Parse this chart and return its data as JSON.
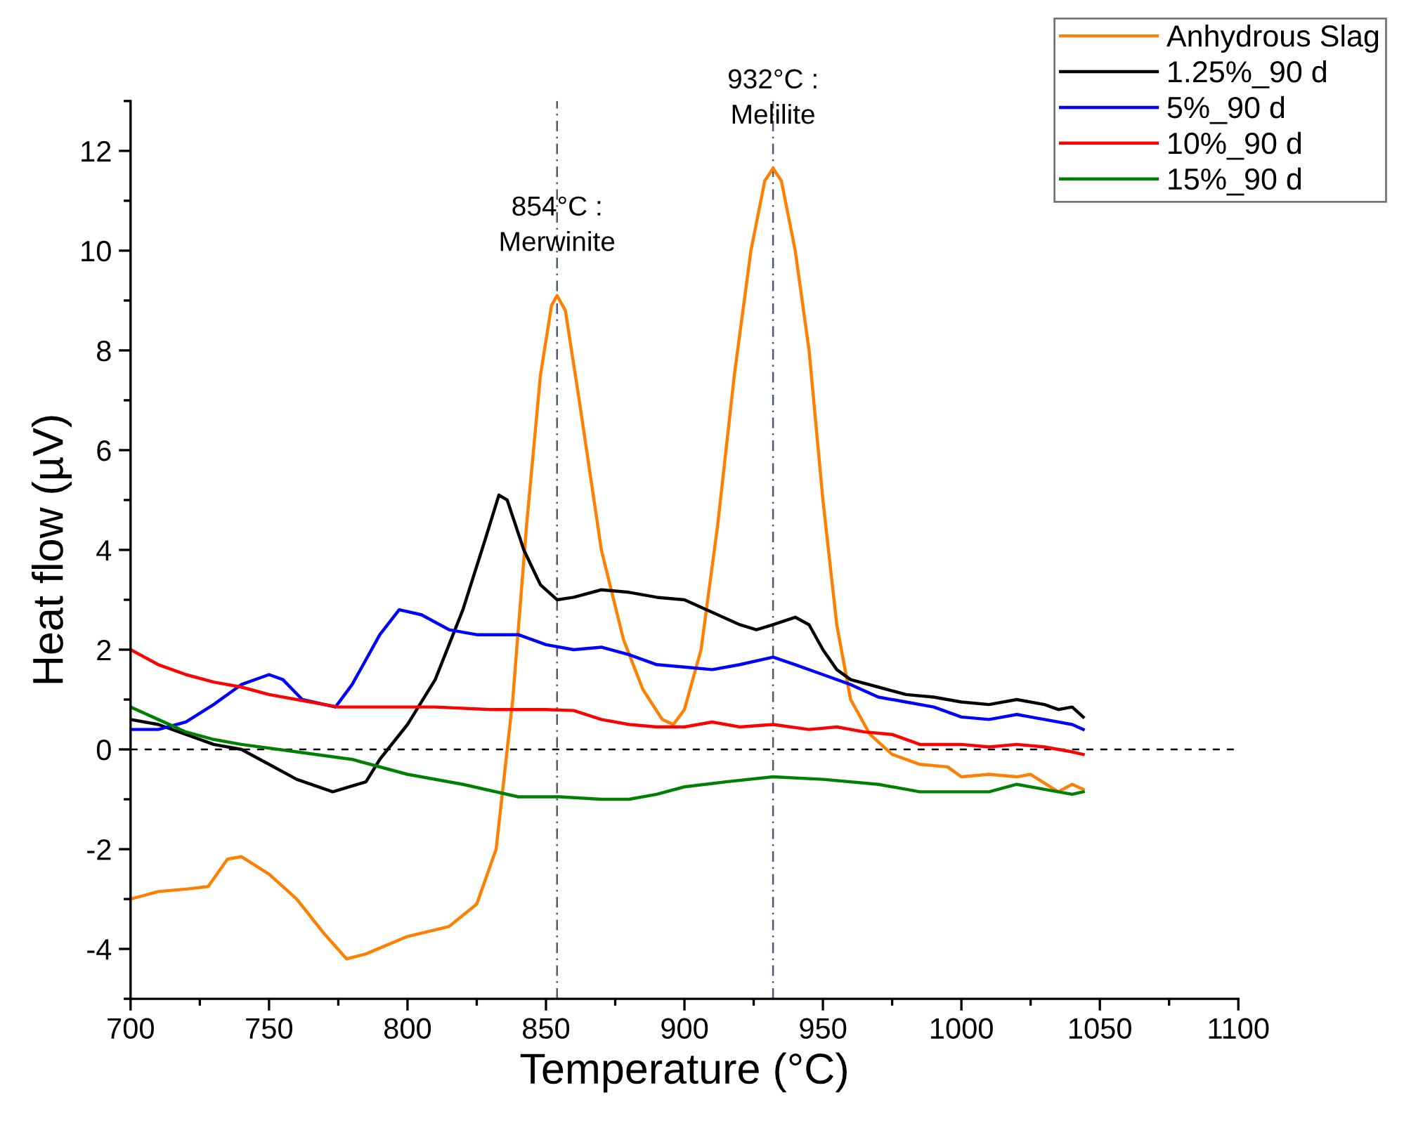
{
  "chart_data": {
    "type": "line",
    "xlabel": "Temperature (°C)",
    "ylabel": "Heat flow (µV)",
    "xlim": [
      700,
      1100
    ],
    "xticks": [
      700,
      750,
      800,
      850,
      900,
      950,
      1000,
      1050,
      1100
    ],
    "ylim": [
      -5,
      13
    ],
    "yticks": [
      -4,
      -2,
      0,
      2,
      4,
      6,
      8,
      10,
      12
    ],
    "grid": false,
    "legend": "top right",
    "line_style": "solid",
    "marker": "none",
    "series": [
      {
        "name": "Anhydrous Slag",
        "color": "#ff7f00",
        "x": [
          700,
          710,
          720,
          728,
          735,
          740,
          750,
          760,
          770,
          778,
          785,
          800,
          815,
          825,
          832,
          838,
          843,
          848,
          852,
          854,
          857,
          862,
          870,
          878,
          885,
          892,
          896,
          900,
          906,
          912,
          918,
          924,
          929,
          932,
          935,
          940,
          945,
          950,
          955,
          960,
          967,
          975,
          985,
          995,
          1000,
          1010,
          1020,
          1025,
          1035,
          1040,
          1044
        ],
        "values": [
          -3.0,
          -2.85,
          -2.8,
          -2.75,
          -2.2,
          -2.15,
          -2.5,
          -3.0,
          -3.7,
          -4.2,
          -4.1,
          -3.75,
          -3.55,
          -3.1,
          -2.0,
          1.0,
          4.5,
          7.5,
          8.9,
          9.1,
          8.8,
          7.0,
          4.0,
          2.2,
          1.2,
          0.6,
          0.5,
          0.8,
          2.0,
          4.5,
          7.5,
          10.0,
          11.4,
          11.65,
          11.4,
          10.0,
          8.0,
          5.0,
          2.5,
          1.0,
          0.3,
          -0.1,
          -0.3,
          -0.35,
          -0.55,
          -0.5,
          -0.55,
          -0.5,
          -0.85,
          -0.7,
          -0.8
        ]
      },
      {
        "name": "1.25%_90 d",
        "color": "#000000",
        "x": [
          700,
          710,
          720,
          730,
          740,
          750,
          760,
          773,
          785,
          790,
          800,
          810,
          820,
          828,
          833,
          836,
          842,
          848,
          854,
          860,
          870,
          880,
          890,
          900,
          910,
          920,
          926,
          932,
          940,
          945,
          950,
          955,
          960,
          970,
          980,
          990,
          1000,
          1010,
          1020,
          1030,
          1035,
          1040,
          1044
        ],
        "values": [
          0.6,
          0.5,
          0.3,
          0.1,
          0.0,
          -0.3,
          -0.6,
          -0.85,
          -0.65,
          -0.2,
          0.5,
          1.4,
          2.8,
          4.2,
          5.1,
          5.0,
          4.0,
          3.3,
          3.0,
          3.05,
          3.2,
          3.15,
          3.05,
          3.0,
          2.75,
          2.5,
          2.4,
          2.5,
          2.65,
          2.5,
          2.0,
          1.6,
          1.4,
          1.25,
          1.1,
          1.05,
          0.95,
          0.9,
          1.0,
          0.9,
          0.8,
          0.85,
          0.65
        ]
      },
      {
        "name": "5%_90 d",
        "color": "#0000ff",
        "x": [
          700,
          710,
          720,
          730,
          740,
          750,
          755,
          762,
          774,
          780,
          790,
          797,
          805,
          815,
          825,
          840,
          850,
          860,
          870,
          880,
          890,
          900,
          910,
          920,
          932,
          940,
          950,
          960,
          970,
          980,
          990,
          1000,
          1010,
          1020,
          1030,
          1040,
          1044
        ],
        "values": [
          0.4,
          0.4,
          0.55,
          0.9,
          1.3,
          1.5,
          1.4,
          1.0,
          0.85,
          1.3,
          2.3,
          2.8,
          2.7,
          2.4,
          2.3,
          2.3,
          2.1,
          2.0,
          2.05,
          1.9,
          1.7,
          1.65,
          1.6,
          1.7,
          1.85,
          1.7,
          1.5,
          1.3,
          1.05,
          0.95,
          0.85,
          0.65,
          0.6,
          0.7,
          0.6,
          0.5,
          0.4
        ]
      },
      {
        "name": "10%_90 d",
        "color": "#ff0000",
        "x": [
          700,
          710,
          720,
          730,
          740,
          750,
          760,
          775,
          790,
          810,
          830,
          850,
          860,
          870,
          880,
          890,
          900,
          910,
          920,
          932,
          945,
          955,
          965,
          975,
          985,
          1000,
          1010,
          1020,
          1030,
          1040,
          1044
        ],
        "values": [
          2.0,
          1.7,
          1.5,
          1.35,
          1.25,
          1.1,
          1.0,
          0.85,
          0.85,
          0.85,
          0.8,
          0.8,
          0.78,
          0.6,
          0.5,
          0.45,
          0.45,
          0.55,
          0.45,
          0.5,
          0.4,
          0.45,
          0.35,
          0.3,
          0.1,
          0.1,
          0.05,
          0.1,
          0.05,
          -0.05,
          -0.1
        ]
      },
      {
        "name": "15%_90 d",
        "color": "#008000",
        "x": [
          700,
          710,
          720,
          730,
          740,
          760,
          780,
          800,
          820,
          840,
          855,
          870,
          880,
          890,
          900,
          915,
          932,
          950,
          970,
          985,
          1000,
          1010,
          1020,
          1030,
          1040,
          1044
        ],
        "values": [
          0.85,
          0.6,
          0.35,
          0.2,
          0.1,
          -0.05,
          -0.2,
          -0.5,
          -0.7,
          -0.95,
          -0.95,
          -1.0,
          -1.0,
          -0.9,
          -0.75,
          -0.65,
          -0.55,
          -0.6,
          -0.7,
          -0.85,
          -0.85,
          -0.85,
          -0.7,
          -0.8,
          -0.9,
          -0.85
        ]
      }
    ],
    "ref_lines": [
      {
        "axis": "y",
        "value": 0,
        "color": "#000000",
        "line_style": "dashed"
      },
      {
        "axis": "x",
        "value": 854,
        "color": "#4a5a78",
        "line_style": "dashdot"
      },
      {
        "axis": "x",
        "value": 932,
        "color": "#4a5a78",
        "line_style": "dashdot"
      }
    ],
    "annotations": [
      {
        "text": "854°C :\nMerwinite",
        "x": 854,
        "y": 9.1
      },
      {
        "text": "932°C :\nMelilite",
        "x": 932,
        "y": 11.65
      }
    ]
  }
}
